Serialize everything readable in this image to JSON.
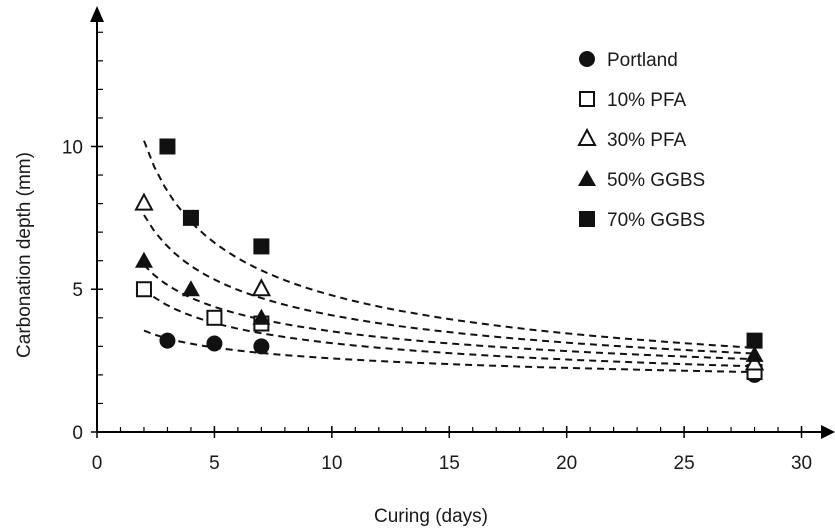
{
  "chart_data": {
    "type": "scatter",
    "title": "",
    "xlabel": "Curing (days)",
    "ylabel": "Carbonation depth (mm)",
    "xlim": [
      0,
      31
    ],
    "ylim": [
      0,
      14.5
    ],
    "xticks": [
      0,
      5,
      10,
      15,
      20,
      25,
      30
    ],
    "yticks": [
      0,
      5,
      10
    ],
    "legend_position": "top-right",
    "trendlines": "dashed fitted curves per series",
    "series": [
      {
        "name": "Portland",
        "marker": "circle-filled",
        "points": [
          [
            3,
            3.2
          ],
          [
            5,
            3.1
          ],
          [
            7,
            3.0
          ],
          [
            28,
            2.0
          ]
        ],
        "trend": {
          "from": 2,
          "to": 28,
          "y_start": 3.55,
          "y_end": 2.1
        }
      },
      {
        "name": "10% PFA",
        "marker": "square-open",
        "points": [
          [
            2,
            5.0
          ],
          [
            5,
            4.0
          ],
          [
            7,
            3.8
          ],
          [
            28,
            2.1
          ]
        ],
        "trend": {
          "from": 2,
          "to": 28,
          "y_start": 5.0,
          "y_end": 2.3
        }
      },
      {
        "name": "30% PFA",
        "marker": "triangle-open",
        "points": [
          [
            2,
            8.0
          ],
          [
            7,
            5.0
          ],
          [
            28,
            2.4
          ]
        ],
        "trend": {
          "from": 2,
          "to": 28,
          "y_start": 7.6,
          "y_end": 2.75
        }
      },
      {
        "name": "50% GGBS",
        "marker": "triangle-filled",
        "points": [
          [
            2,
            6.0
          ],
          [
            4,
            5.0
          ],
          [
            7,
            4.0
          ],
          [
            28,
            2.7
          ]
        ],
        "trend": {
          "from": 2,
          "to": 28,
          "y_start": 5.85,
          "y_end": 2.55
        }
      },
      {
        "name": "70% GGBS",
        "marker": "square-filled",
        "points": [
          [
            3,
            10.0
          ],
          [
            4,
            7.5
          ],
          [
            7,
            6.5
          ],
          [
            28,
            3.2
          ]
        ],
        "trend": {
          "from": 2,
          "to": 28,
          "y_start": 10.2,
          "y_end": 2.95
        }
      }
    ]
  }
}
